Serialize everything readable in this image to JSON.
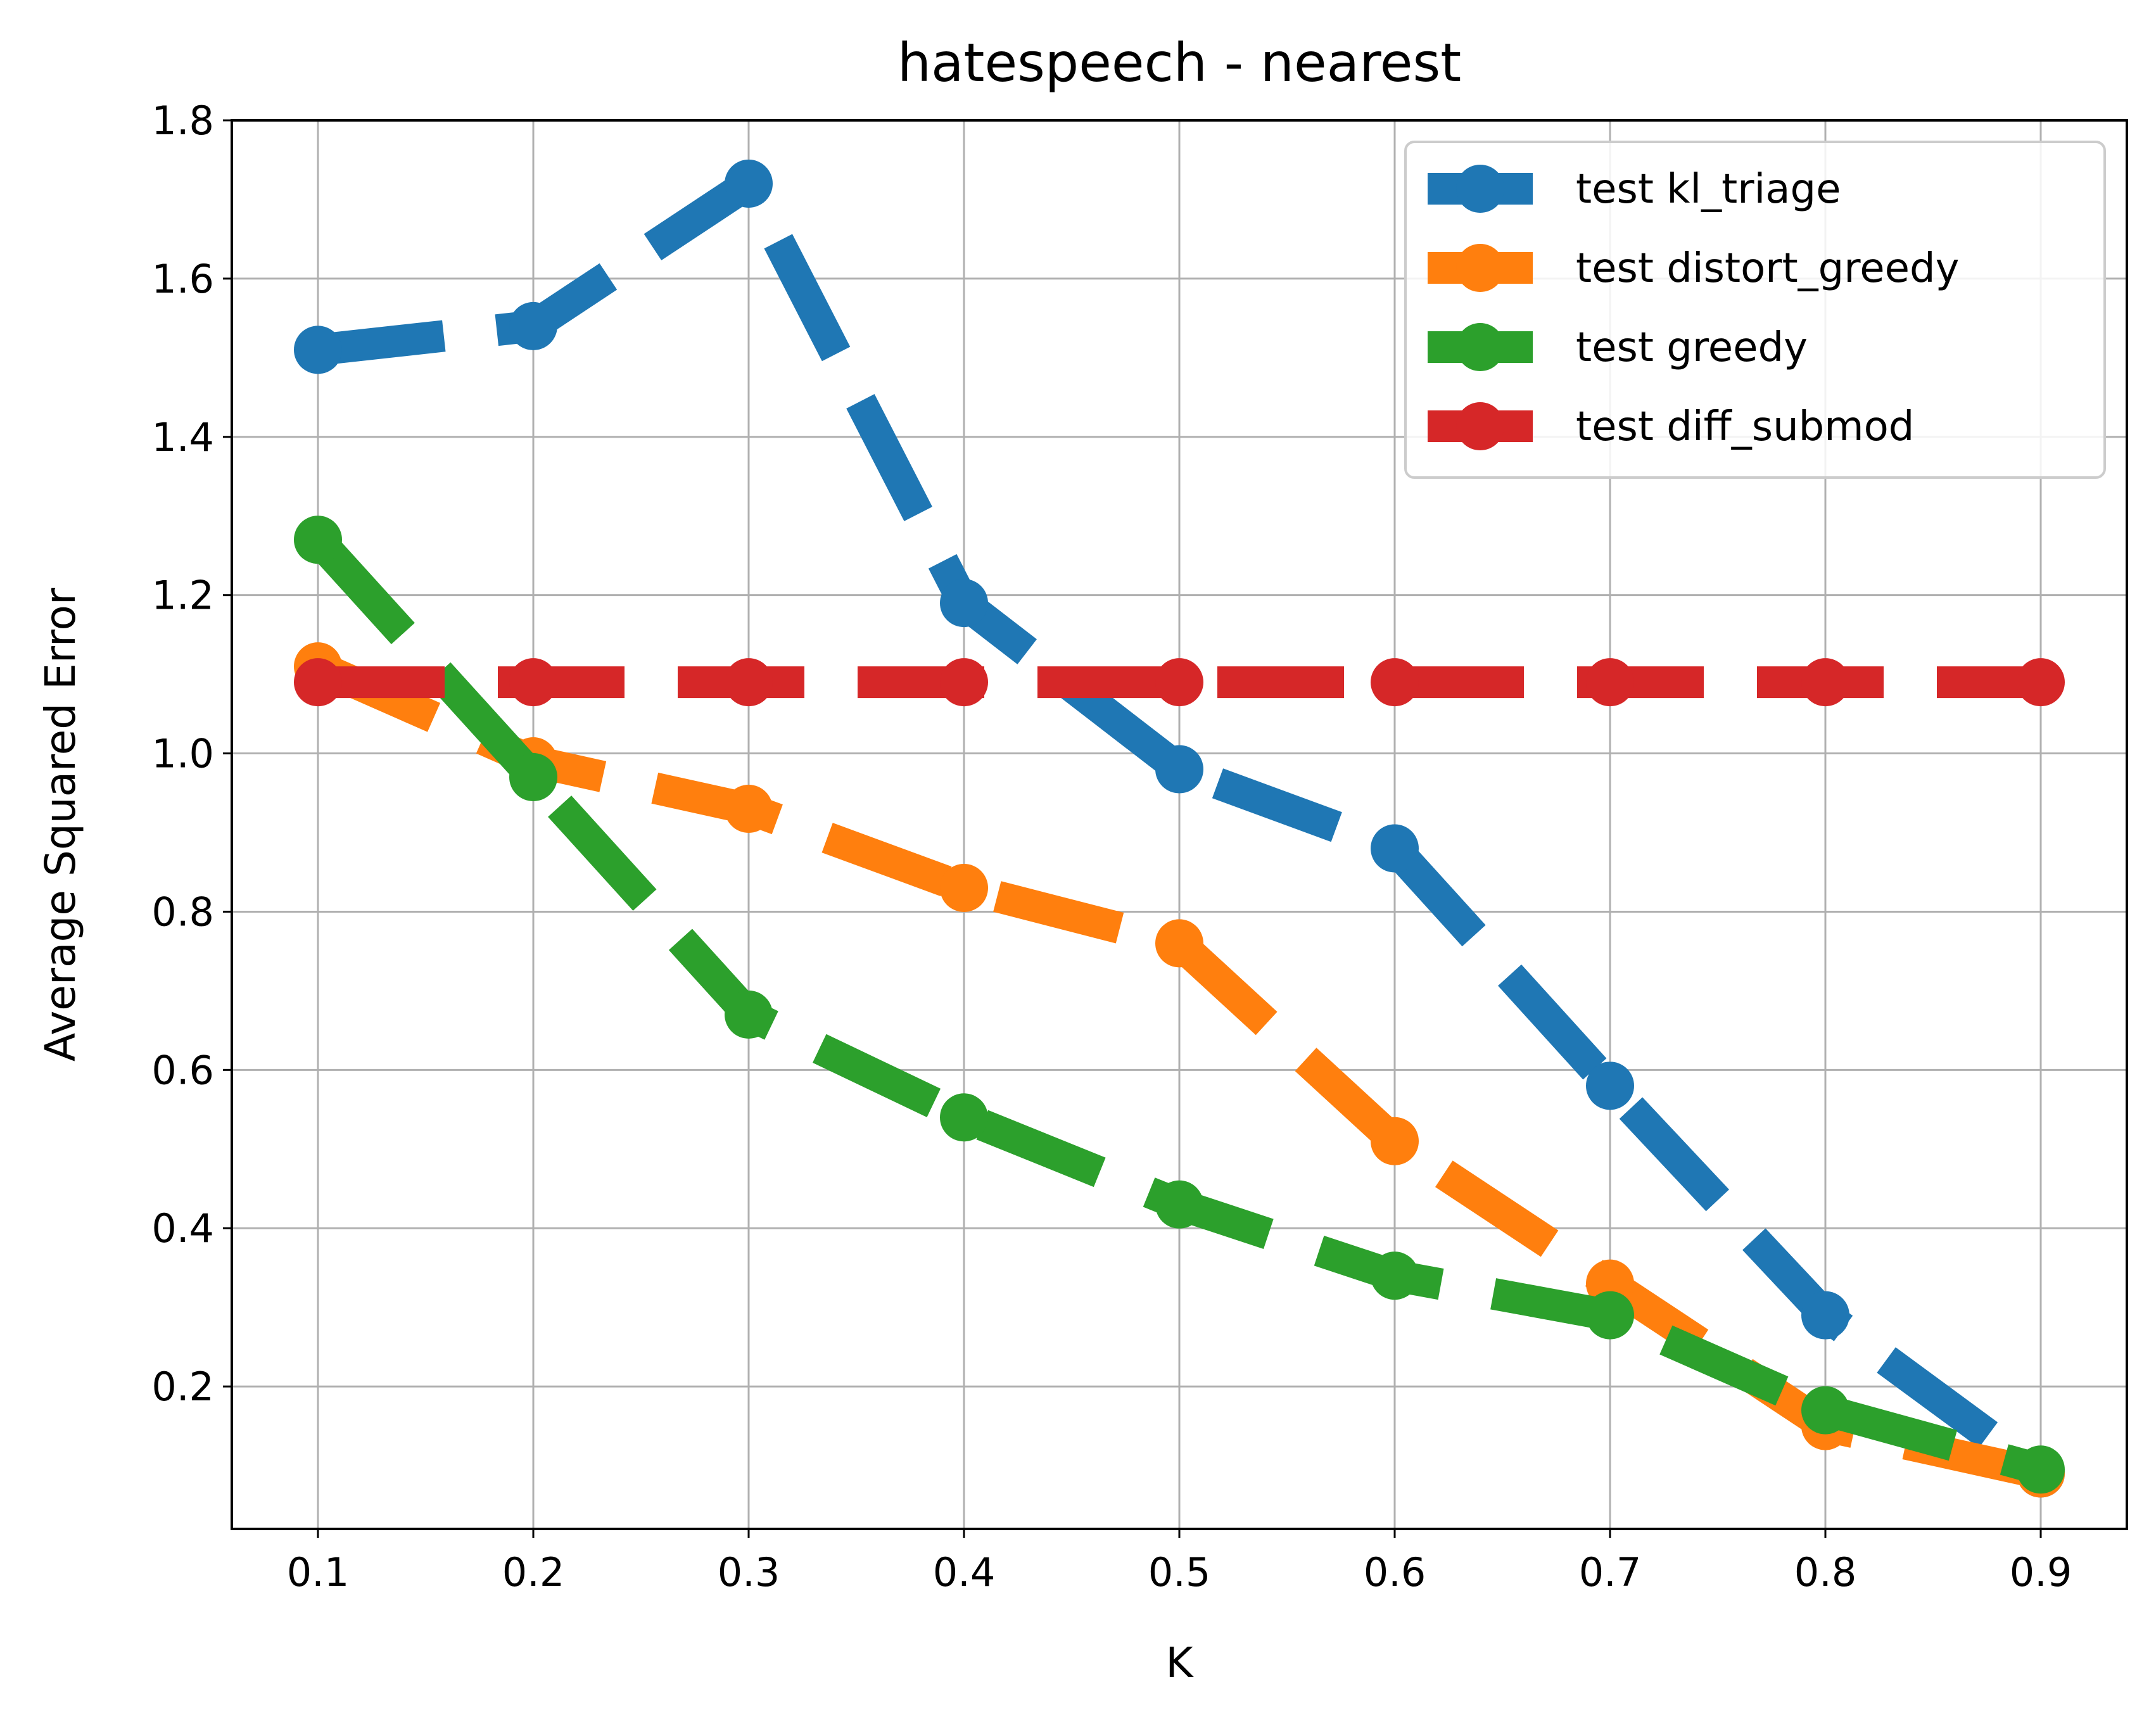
{
  "chart_data": {
    "type": "line",
    "title": "hatespeech - nearest",
    "xlabel": "K",
    "ylabel": "Average Squared Error",
    "x": [
      0.1,
      0.2,
      0.3,
      0.4,
      0.5,
      0.6,
      0.7,
      0.8,
      0.9
    ],
    "x_tick_labels": [
      "0.1",
      "0.2",
      "0.3",
      "0.4",
      "0.5",
      "0.6",
      "0.7",
      "0.8",
      "0.9"
    ],
    "xlim": [
      0.06,
      0.94
    ],
    "y_ticks": [
      0.2,
      0.4,
      0.6,
      0.8,
      1.0,
      1.2,
      1.4,
      1.6,
      1.8
    ],
    "y_tick_labels": [
      "0.2",
      "0.4",
      "0.6",
      "0.8",
      "1.0",
      "1.2",
      "1.4",
      "1.6",
      "1.8"
    ],
    "ylim": [
      0.02,
      1.8
    ],
    "grid": true,
    "legend_position": "top-right",
    "line_style": "dashed",
    "marker": "circle",
    "series": [
      {
        "name": "test kl_triage",
        "color": "#1f77b4",
        "values": [
          1.51,
          1.54,
          1.72,
          1.19,
          0.98,
          0.88,
          0.58,
          0.29,
          0.09
        ]
      },
      {
        "name": "test distort_greedy",
        "color": "#ff7f0e",
        "values": [
          1.11,
          0.99,
          0.93,
          0.83,
          0.76,
          0.51,
          0.33,
          0.15,
          0.09
        ]
      },
      {
        "name": "test greedy",
        "color": "#2ca02c",
        "values": [
          1.27,
          0.97,
          0.67,
          0.54,
          0.43,
          0.34,
          0.29,
          0.17,
          0.095
        ]
      },
      {
        "name": "test diff_submod",
        "color": "#d62728",
        "values": [
          1.09,
          1.09,
          1.09,
          1.09,
          1.09,
          1.09,
          1.09,
          1.09,
          1.09
        ]
      }
    ]
  }
}
